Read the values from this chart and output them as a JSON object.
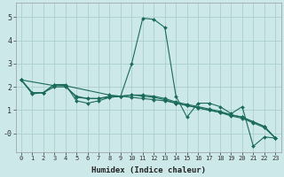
{
  "xlabel": "Humidex (Indice chaleur)",
  "bg_color": "#cce8e8",
  "grid_color": "#aacece",
  "line_color": "#1a6b5a",
  "xlim": [
    -0.5,
    23.5
  ],
  "ylim": [
    -0.8,
    5.6
  ],
  "ytick_vals": [
    0,
    1,
    2,
    3,
    4,
    5
  ],
  "ytick_labels": [
    "-0",
    "1",
    "2",
    "3",
    "4",
    "5"
  ],
  "xticks": [
    0,
    1,
    2,
    3,
    4,
    5,
    6,
    7,
    8,
    9,
    10,
    11,
    12,
    13,
    14,
    15,
    16,
    17,
    18,
    19,
    20,
    21,
    22,
    23
  ],
  "lines": [
    {
      "x": [
        0,
        1,
        2,
        3,
        4,
        5,
        6,
        7,
        8,
        9,
        10,
        11,
        12,
        13,
        14,
        15,
        16,
        17,
        18,
        19,
        20,
        21,
        22,
        23
      ],
      "y": [
        2.3,
        1.7,
        1.75,
        2.1,
        2.1,
        1.4,
        1.3,
        1.4,
        1.55,
        1.6,
        3.0,
        4.95,
        4.9,
        4.55,
        1.6,
        0.7,
        1.3,
        1.3,
        1.15,
        0.85,
        1.15,
        -0.55,
        -0.15,
        -0.2
      ]
    },
    {
      "x": [
        0,
        3,
        4,
        8,
        9,
        10,
        11,
        12,
        13,
        14,
        15,
        16,
        17,
        18,
        19,
        20,
        21,
        22,
        23
      ],
      "y": [
        2.3,
        2.05,
        2.05,
        1.65,
        1.6,
        1.55,
        1.5,
        1.45,
        1.4,
        1.3,
        1.2,
        1.1,
        1.0,
        0.9,
        0.8,
        0.7,
        0.5,
        0.3,
        -0.2
      ]
    },
    {
      "x": [
        0,
        1,
        2,
        3,
        4,
        5,
        6,
        7,
        8,
        9,
        10,
        11,
        12,
        13,
        14,
        15,
        16,
        17,
        18,
        19,
        20,
        21,
        22,
        23
      ],
      "y": [
        2.3,
        1.75,
        1.75,
        2.1,
        2.05,
        1.55,
        1.5,
        1.5,
        1.6,
        1.6,
        1.65,
        1.6,
        1.55,
        1.45,
        1.3,
        1.2,
        1.1,
        1.0,
        0.9,
        0.75,
        0.65,
        0.45,
        0.25,
        -0.2
      ]
    },
    {
      "x": [
        0,
        1,
        2,
        3,
        4,
        5,
        6,
        7,
        8,
        9,
        10,
        11,
        12,
        13,
        14,
        15,
        16,
        17,
        18,
        19,
        20,
        21,
        22,
        23
      ],
      "y": [
        2.3,
        1.75,
        1.75,
        2.0,
        2.0,
        1.6,
        1.5,
        1.5,
        1.55,
        1.6,
        1.65,
        1.65,
        1.6,
        1.5,
        1.35,
        1.25,
        1.15,
        1.05,
        0.95,
        0.8,
        0.7,
        0.5,
        0.3,
        -0.2
      ]
    }
  ]
}
